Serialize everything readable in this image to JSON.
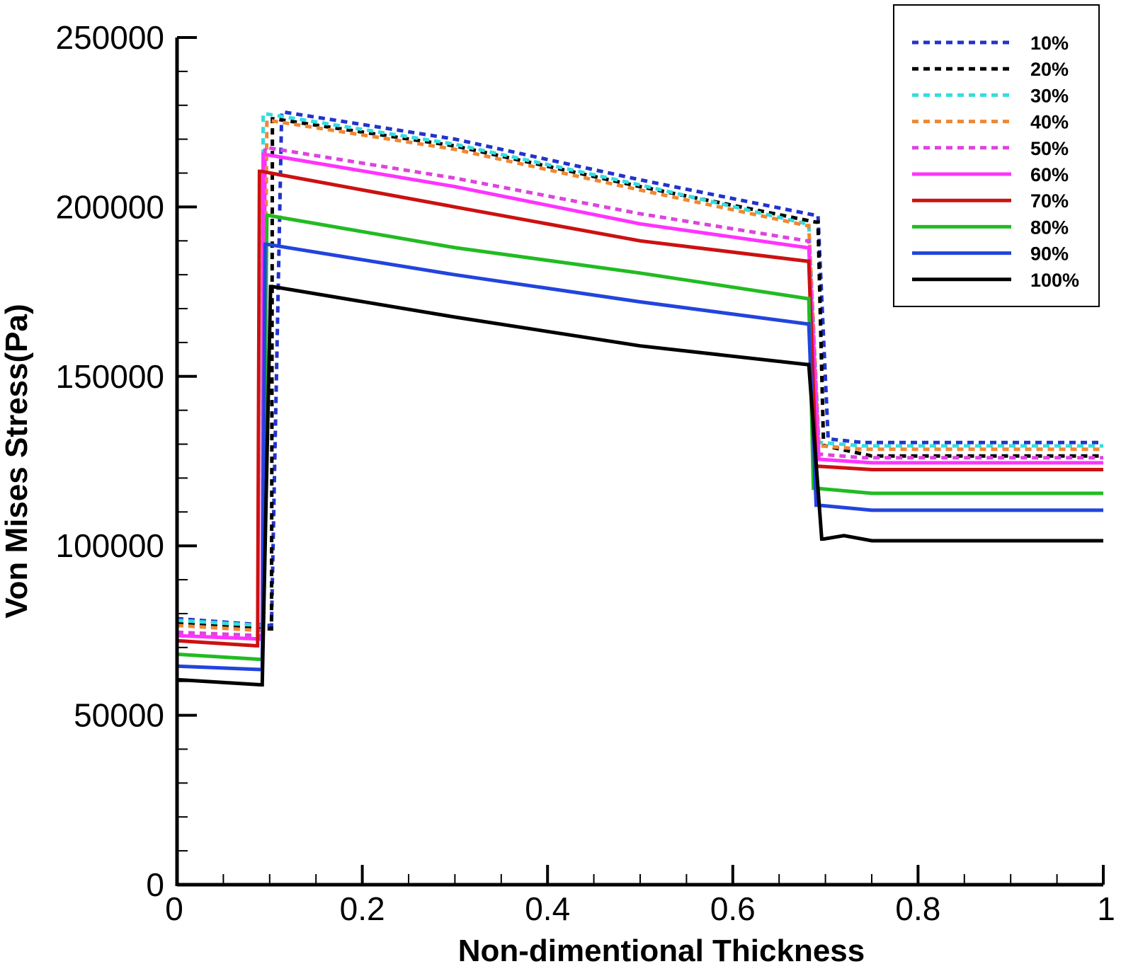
{
  "chart_data": {
    "type": "line",
    "title": "",
    "xlabel": "Non-dimentional Thickness",
    "ylabel": "Von Mises Stress(Pa)",
    "xlim": [
      0,
      1
    ],
    "ylim": [
      0,
      250000
    ],
    "x_ticks": [
      "0",
      "0.2",
      "0.4",
      "0.6",
      "0.8",
      "1"
    ],
    "y_ticks": [
      "0",
      "50000",
      "100000",
      "150000",
      "200000",
      "250000"
    ],
    "grid": false,
    "legend_position": "top-right",
    "series": [
      {
        "name": "10%",
        "color": "#2233cc",
        "style": "dotted",
        "x": [
          0,
          0.1,
          0.102,
          0.113,
          0.115,
          0.3,
          0.5,
          0.69,
          0.692,
          0.703,
          0.705,
          0.74,
          1.0
        ],
        "y": [
          78500,
          76500,
          76500,
          228000,
          228000,
          220000,
          208000,
          197500,
          197500,
          131500,
          131500,
          130500,
          130500
        ]
      },
      {
        "name": "20%",
        "color": "#000000",
        "style": "dotted",
        "x": [
          0,
          0.1,
          0.102,
          0.103,
          0.105,
          0.3,
          0.5,
          0.69,
          0.692,
          0.698,
          0.7,
          0.75,
          1.0
        ],
        "y": [
          77000,
          75500,
          75500,
          226000,
          226000,
          218000,
          206000,
          195500,
          195500,
          129500,
          129500,
          126500,
          126500
        ]
      },
      {
        "name": "30%",
        "color": "#33dddd",
        "style": "dotted",
        "x": [
          0,
          0.09,
          0.092,
          0.093,
          0.095,
          0.3,
          0.5,
          0.68,
          0.682,
          0.693,
          0.695,
          0.74,
          1.0
        ],
        "y": [
          78000,
          76500,
          76500,
          227500,
          227500,
          218500,
          206500,
          195000,
          195000,
          130500,
          130500,
          129500,
          129500
        ]
      },
      {
        "name": "40%",
        "color": "#ee8833",
        "style": "dotted",
        "x": [
          0,
          0.09,
          0.092,
          0.097,
          0.1,
          0.3,
          0.5,
          0.68,
          0.682,
          0.693,
          0.695,
          0.74,
          1.0
        ],
        "y": [
          76500,
          75000,
          75000,
          225500,
          225500,
          217000,
          205000,
          194500,
          194500,
          129500,
          129500,
          128500,
          128500
        ]
      },
      {
        "name": "50%",
        "color": "#dd44dd",
        "style": "dotted",
        "x": [
          0,
          0.09,
          0.092,
          0.095,
          0.097,
          0.3,
          0.5,
          0.68,
          0.682,
          0.693,
          0.695,
          0.74,
          1.0
        ],
        "y": [
          74500,
          73500,
          73500,
          217500,
          217500,
          208500,
          198000,
          190000,
          190000,
          127000,
          127000,
          126000,
          126000
        ]
      },
      {
        "name": "60%",
        "color": "#ff33ff",
        "style": "solid",
        "x": [
          0,
          0.09,
          0.092,
          0.093,
          0.095,
          0.3,
          0.5,
          0.68,
          0.682,
          0.693,
          0.695,
          0.75,
          1.0
        ],
        "y": [
          73500,
          72500,
          72500,
          215500,
          215500,
          206000,
          195000,
          188000,
          188000,
          125500,
          125500,
          124500,
          124500
        ]
      },
      {
        "name": "70%",
        "color": "#cc1111",
        "style": "solid",
        "x": [
          0,
          0.085,
          0.087,
          0.089,
          0.091,
          0.3,
          0.5,
          0.68,
          0.682,
          0.69,
          0.692,
          0.75,
          1.0
        ],
        "y": [
          72000,
          70500,
          70500,
          210500,
          210500,
          200000,
          190000,
          184000,
          184000,
          123500,
          123500,
          122500,
          122500
        ]
      },
      {
        "name": "80%",
        "color": "#22bb22",
        "style": "solid",
        "x": [
          0,
          0.09,
          0.092,
          0.097,
          0.099,
          0.3,
          0.5,
          0.68,
          0.682,
          0.687,
          0.689,
          0.75,
          1.0
        ],
        "y": [
          68000,
          66500,
          66500,
          197500,
          197500,
          188000,
          180500,
          173000,
          173000,
          117000,
          117000,
          115500,
          115500
        ]
      },
      {
        "name": "90%",
        "color": "#2244dd",
        "style": "solid",
        "x": [
          0,
          0.09,
          0.092,
          0.095,
          0.097,
          0.3,
          0.5,
          0.68,
          0.682,
          0.69,
          0.692,
          0.75,
          1.0
        ],
        "y": [
          64500,
          63500,
          63500,
          189000,
          189000,
          180000,
          172000,
          165500,
          165500,
          112000,
          112000,
          110500,
          110500
        ]
      },
      {
        "name": "100%",
        "color": "#000000",
        "style": "solid",
        "x": [
          0,
          0.09,
          0.092,
          0.101,
          0.103,
          0.3,
          0.5,
          0.68,
          0.682,
          0.696,
          0.698,
          0.72,
          0.75,
          1.0
        ],
        "y": [
          60500,
          59000,
          59000,
          176500,
          176500,
          167500,
          159000,
          153500,
          153500,
          102000,
          102000,
          103000,
          101500,
          101500
        ]
      }
    ]
  }
}
